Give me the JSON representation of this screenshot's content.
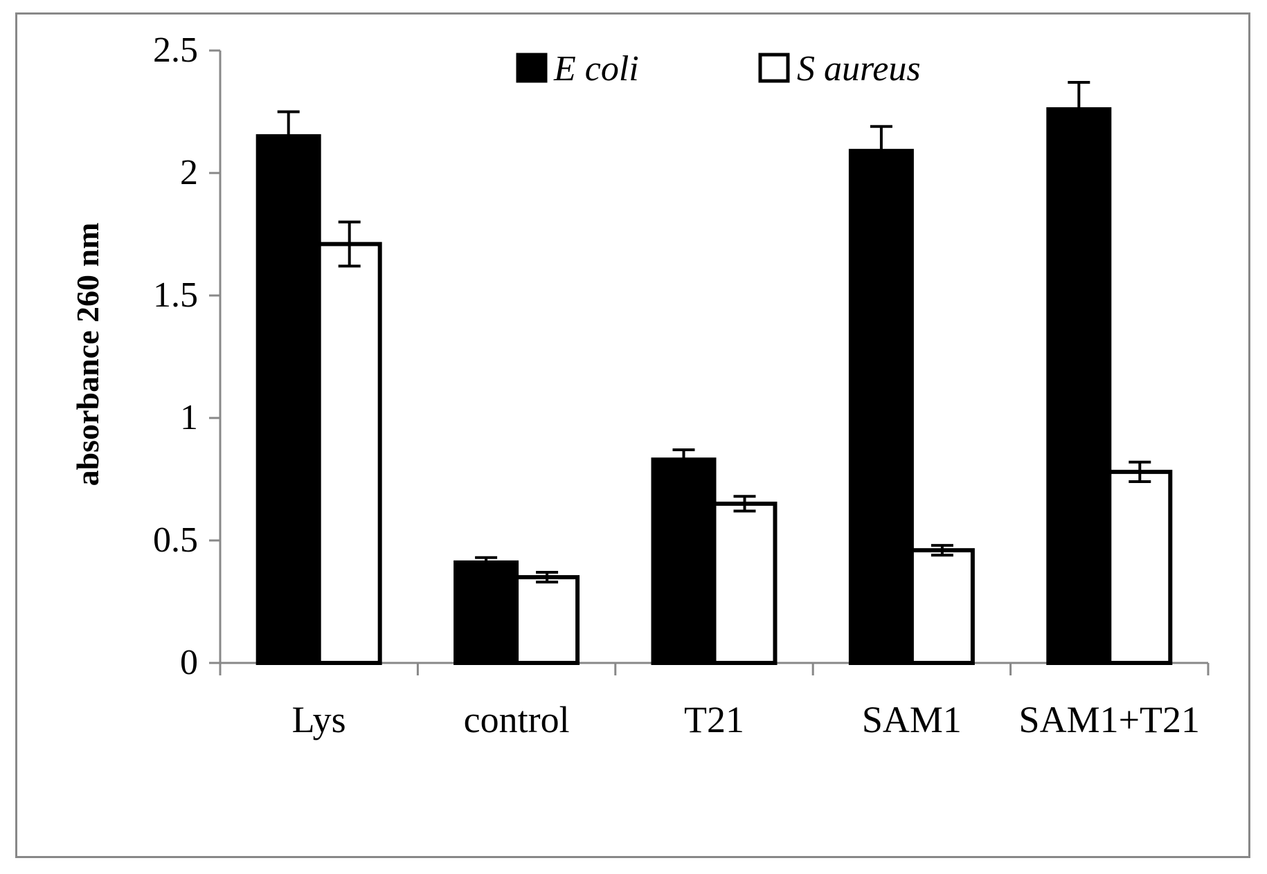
{
  "chart_data": {
    "type": "bar",
    "title": "",
    "xlabel": "",
    "ylabel": "absorbance 260 nm",
    "ylim": [
      0,
      2.5
    ],
    "yticks": [
      "0",
      "0.5",
      "1",
      "1.5",
      "2",
      "2.5"
    ],
    "categories": [
      "Lys",
      "control",
      "T21",
      "SAM1",
      "SAM1+T21"
    ],
    "legend_position": "top-center",
    "series": [
      {
        "name": "E coli",
        "fill": "#000000",
        "values": [
          2.15,
          0.41,
          0.83,
          2.09,
          2.26
        ],
        "errors": [
          0.1,
          0.02,
          0.04,
          0.1,
          0.11
        ]
      },
      {
        "name": "S aureus",
        "fill": "#ffffff",
        "values": [
          1.71,
          0.35,
          0.65,
          0.46,
          0.78
        ],
        "errors": [
          0.09,
          0.02,
          0.03,
          0.02,
          0.04
        ]
      }
    ]
  }
}
